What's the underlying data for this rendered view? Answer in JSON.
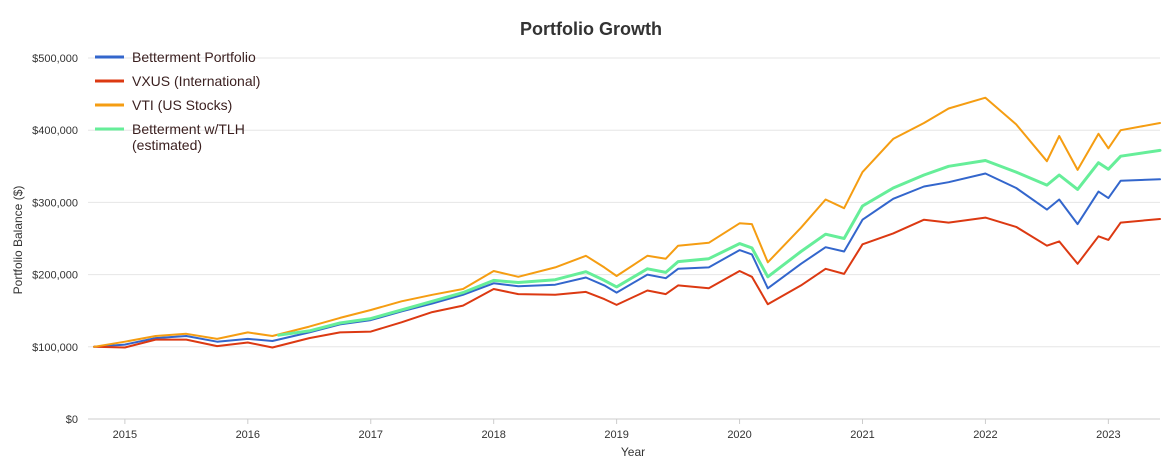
{
  "chart_data": {
    "type": "line",
    "title": "Portfolio Growth",
    "xlabel": "Year",
    "ylabel": "Portfolio Balance ($)",
    "ylim": [
      0,
      500000
    ],
    "xlim": [
      2014.7,
      2023.42
    ],
    "y_ticks": [
      "$0",
      "$100,000",
      "$200,000",
      "$300,000",
      "$400,000",
      "$500,000"
    ],
    "y_tick_values": [
      0,
      100000,
      200000,
      300000,
      400000,
      500000
    ],
    "x_ticks": [
      "2015",
      "2016",
      "2017",
      "2018",
      "2019",
      "2020",
      "2021",
      "2022",
      "2023"
    ],
    "x_tick_values": [
      2015,
      2016,
      2017,
      2018,
      2019,
      2020,
      2021,
      2022,
      2023
    ],
    "grid": "horizontal",
    "legend_position": "top-left",
    "series": [
      {
        "name": "Betterment Portfolio",
        "color": "#3366cc",
        "points": [
          [
            2014.75,
            100000
          ],
          [
            2015.0,
            103000
          ],
          [
            2015.25,
            112000
          ],
          [
            2015.5,
            115000
          ],
          [
            2015.75,
            107000
          ],
          [
            2016.0,
            111000
          ],
          [
            2016.2,
            108000
          ],
          [
            2016.5,
            120000
          ],
          [
            2016.75,
            131000
          ],
          [
            2017.0,
            137000
          ],
          [
            2017.25,
            149000
          ],
          [
            2017.5,
            160000
          ],
          [
            2017.75,
            172000
          ],
          [
            2018.0,
            188000
          ],
          [
            2018.2,
            184000
          ],
          [
            2018.5,
            186000
          ],
          [
            2018.75,
            196000
          ],
          [
            2018.9,
            185000
          ],
          [
            2019.0,
            175000
          ],
          [
            2019.25,
            200000
          ],
          [
            2019.4,
            195000
          ],
          [
            2019.5,
            208000
          ],
          [
            2019.75,
            210000
          ],
          [
            2020.0,
            234000
          ],
          [
            2020.1,
            228000
          ],
          [
            2020.23,
            181000
          ],
          [
            2020.5,
            215000
          ],
          [
            2020.7,
            238000
          ],
          [
            2020.85,
            232000
          ],
          [
            2021.0,
            276000
          ],
          [
            2021.25,
            305000
          ],
          [
            2021.5,
            322000
          ],
          [
            2021.7,
            328000
          ],
          [
            2022.0,
            340000
          ],
          [
            2022.25,
            320000
          ],
          [
            2022.5,
            290000
          ],
          [
            2022.6,
            304000
          ],
          [
            2022.75,
            270000
          ],
          [
            2022.92,
            315000
          ],
          [
            2023.0,
            306000
          ],
          [
            2023.1,
            330000
          ],
          [
            2023.42,
            332000
          ]
        ]
      },
      {
        "name": "VXUS (International)",
        "color": "#dc3912",
        "points": [
          [
            2014.75,
            100000
          ],
          [
            2015.0,
            99000
          ],
          [
            2015.25,
            110000
          ],
          [
            2015.5,
            110000
          ],
          [
            2015.75,
            101000
          ],
          [
            2016.0,
            106000
          ],
          [
            2016.2,
            99000
          ],
          [
            2016.5,
            112000
          ],
          [
            2016.75,
            120000
          ],
          [
            2017.0,
            121000
          ],
          [
            2017.25,
            134000
          ],
          [
            2017.5,
            148000
          ],
          [
            2017.75,
            157000
          ],
          [
            2018.0,
            180000
          ],
          [
            2018.2,
            173000
          ],
          [
            2018.5,
            172000
          ],
          [
            2018.75,
            176000
          ],
          [
            2018.9,
            166000
          ],
          [
            2019.0,
            158000
          ],
          [
            2019.25,
            178000
          ],
          [
            2019.4,
            173000
          ],
          [
            2019.5,
            185000
          ],
          [
            2019.75,
            181000
          ],
          [
            2020.0,
            205000
          ],
          [
            2020.1,
            197000
          ],
          [
            2020.23,
            159000
          ],
          [
            2020.5,
            185000
          ],
          [
            2020.7,
            208000
          ],
          [
            2020.85,
            201000
          ],
          [
            2021.0,
            242000
          ],
          [
            2021.25,
            257000
          ],
          [
            2021.5,
            276000
          ],
          [
            2021.7,
            272000
          ],
          [
            2022.0,
            279000
          ],
          [
            2022.25,
            266000
          ],
          [
            2022.5,
            240000
          ],
          [
            2022.6,
            246000
          ],
          [
            2022.75,
            215000
          ],
          [
            2022.92,
            253000
          ],
          [
            2023.0,
            248000
          ],
          [
            2023.1,
            272000
          ],
          [
            2023.42,
            277000
          ]
        ]
      },
      {
        "name": "VTI (US Stocks)",
        "color": "#f59d12",
        "points": [
          [
            2014.75,
            100000
          ],
          [
            2015.0,
            107000
          ],
          [
            2015.25,
            115000
          ],
          [
            2015.5,
            118000
          ],
          [
            2015.75,
            111000
          ],
          [
            2016.0,
            120000
          ],
          [
            2016.2,
            115000
          ],
          [
            2016.5,
            128000
          ],
          [
            2016.75,
            140000
          ],
          [
            2017.0,
            151000
          ],
          [
            2017.25,
            163000
          ],
          [
            2017.5,
            172000
          ],
          [
            2017.75,
            180000
          ],
          [
            2018.0,
            205000
          ],
          [
            2018.2,
            197000
          ],
          [
            2018.5,
            210000
          ],
          [
            2018.75,
            226000
          ],
          [
            2018.9,
            210000
          ],
          [
            2019.0,
            198000
          ],
          [
            2019.25,
            226000
          ],
          [
            2019.4,
            222000
          ],
          [
            2019.5,
            240000
          ],
          [
            2019.75,
            244000
          ],
          [
            2020.0,
            271000
          ],
          [
            2020.1,
            270000
          ],
          [
            2020.23,
            217000
          ],
          [
            2020.5,
            265000
          ],
          [
            2020.7,
            304000
          ],
          [
            2020.85,
            292000
          ],
          [
            2021.0,
            342000
          ],
          [
            2021.25,
            388000
          ],
          [
            2021.5,
            410000
          ],
          [
            2021.7,
            430000
          ],
          [
            2022.0,
            445000
          ],
          [
            2022.25,
            408000
          ],
          [
            2022.5,
            357000
          ],
          [
            2022.6,
            392000
          ],
          [
            2022.75,
            345000
          ],
          [
            2022.92,
            395000
          ],
          [
            2023.0,
            375000
          ],
          [
            2023.1,
            400000
          ],
          [
            2023.42,
            410000
          ]
        ]
      },
      {
        "name": "Betterment w/TLH (estimated)",
        "color": "#66ee99",
        "points": [
          [
            2016.25,
            116000
          ],
          [
            2016.5,
            122000
          ],
          [
            2016.75,
            133000
          ],
          [
            2017.0,
            139000
          ],
          [
            2017.25,
            151000
          ],
          [
            2017.5,
            163000
          ],
          [
            2017.75,
            175000
          ],
          [
            2018.0,
            192000
          ],
          [
            2018.2,
            189000
          ],
          [
            2018.5,
            193000
          ],
          [
            2018.75,
            204000
          ],
          [
            2018.9,
            192000
          ],
          [
            2019.0,
            183000
          ],
          [
            2019.25,
            208000
          ],
          [
            2019.4,
            203000
          ],
          [
            2019.5,
            218000
          ],
          [
            2019.75,
            222000
          ],
          [
            2020.0,
            243000
          ],
          [
            2020.1,
            237000
          ],
          [
            2020.23,
            197000
          ],
          [
            2020.5,
            232000
          ],
          [
            2020.7,
            256000
          ],
          [
            2020.85,
            250000
          ],
          [
            2021.0,
            295000
          ],
          [
            2021.25,
            320000
          ],
          [
            2021.5,
            338000
          ],
          [
            2021.7,
            350000
          ],
          [
            2022.0,
            358000
          ],
          [
            2022.25,
            342000
          ],
          [
            2022.5,
            324000
          ],
          [
            2022.6,
            338000
          ],
          [
            2022.75,
            318000
          ],
          [
            2022.92,
            355000
          ],
          [
            2023.0,
            346000
          ],
          [
            2023.1,
            364000
          ],
          [
            2023.42,
            372000
          ]
        ]
      }
    ]
  }
}
